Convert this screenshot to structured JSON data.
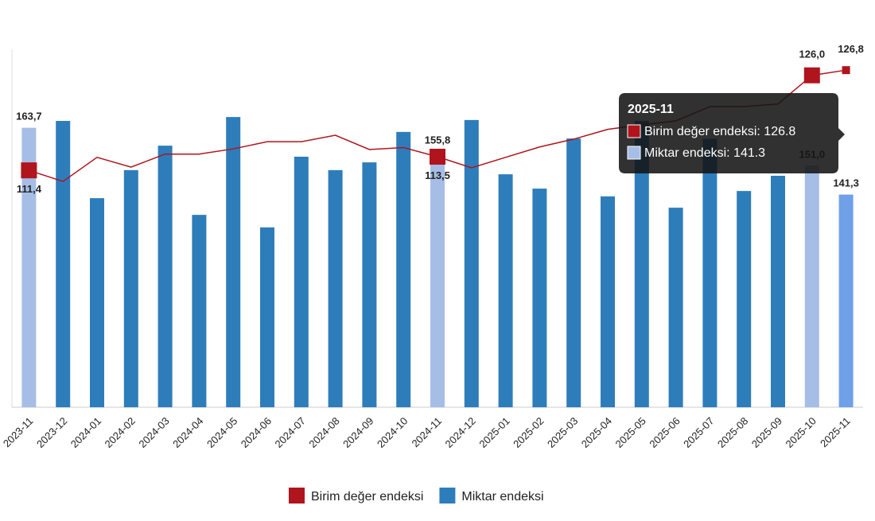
{
  "chart_data": {
    "type": "bar_line",
    "categories": [
      "2023-11",
      "2023-12",
      "2024-01",
      "2024-02",
      "2024-03",
      "2024-04",
      "2024-05",
      "2024-06",
      "2024-07",
      "2024-08",
      "2024-09",
      "2024-10",
      "2024-11",
      "2024-12",
      "2025-01",
      "2025-02",
      "2025-03",
      "2025-04",
      "2025-05",
      "2025-06",
      "2025-07",
      "2025-08",
      "2025-09",
      "2025-10",
      "2025-11"
    ],
    "series": [
      {
        "name": "Birim değer endeksi",
        "type": "line",
        "axis": "y2",
        "color": "#b0141c",
        "values": [
          111.4,
          109.7,
          113.4,
          111.9,
          113.9,
          113.9,
          114.7,
          115.8,
          115.8,
          116.8,
          114.6,
          114.9,
          113.5,
          111.8,
          113.4,
          115.0,
          116.2,
          117.7,
          118.4,
          119.0,
          121.2,
          121.2,
          121.6,
          126.0,
          126.8
        ],
        "value_labels": [
          "111,4",
          null,
          null,
          null,
          null,
          null,
          null,
          null,
          null,
          null,
          null,
          null,
          "113,5",
          null,
          null,
          null,
          null,
          null,
          null,
          null,
          null,
          null,
          null,
          "126,0",
          "126,8"
        ]
      },
      {
        "name": "Miktar endeksi",
        "type": "bar",
        "color": "#2e7dbb",
        "colors": [
          "#a6bde6",
          "#2e7dbb",
          "#2e7dbb",
          "#2e7dbb",
          "#2e7dbb",
          "#2e7dbb",
          "#2e7dbb",
          "#2e7dbb",
          "#2e7dbb",
          "#2e7dbb",
          "#2e7dbb",
          "#2e7dbb",
          "#a6bde6",
          "#2e7dbb",
          "#2e7dbb",
          "#2e7dbb",
          "#2e7dbb",
          "#2e7dbb",
          "#2e7dbb",
          "#2e7dbb",
          "#2e7dbb",
          "#2e7dbb",
          "#2e7dbb",
          "#a6bde6",
          "#6fa0e8"
        ],
        "values": [
          163.7,
          166.0,
          140.1,
          149.5,
          157.7,
          134.5,
          167.3,
          130.3,
          154.0,
          149.5,
          152.1,
          162.3,
          155.8,
          166.3,
          148.1,
          143.3,
          160.1,
          140.7,
          166.0,
          136.9,
          160.0,
          142.5,
          147.6,
          151.0,
          141.3
        ],
        "value_labels": [
          "163,7",
          null,
          null,
          null,
          null,
          null,
          null,
          null,
          null,
          null,
          null,
          null,
          "155,8",
          null,
          null,
          null,
          null,
          null,
          null,
          null,
          null,
          null,
          null,
          "151,0",
          "141,3"
        ]
      }
    ],
    "ylim": [
      70,
      190
    ],
    "y2lim": [
      75,
      130
    ],
    "tooltip": {
      "title": "2025-11",
      "lines": [
        "Birim değer endeksi: 126.8",
        "Miktar endeksi: 141.3"
      ],
      "colors": [
        "#b0141c",
        "#a6bde6"
      ]
    }
  }
}
